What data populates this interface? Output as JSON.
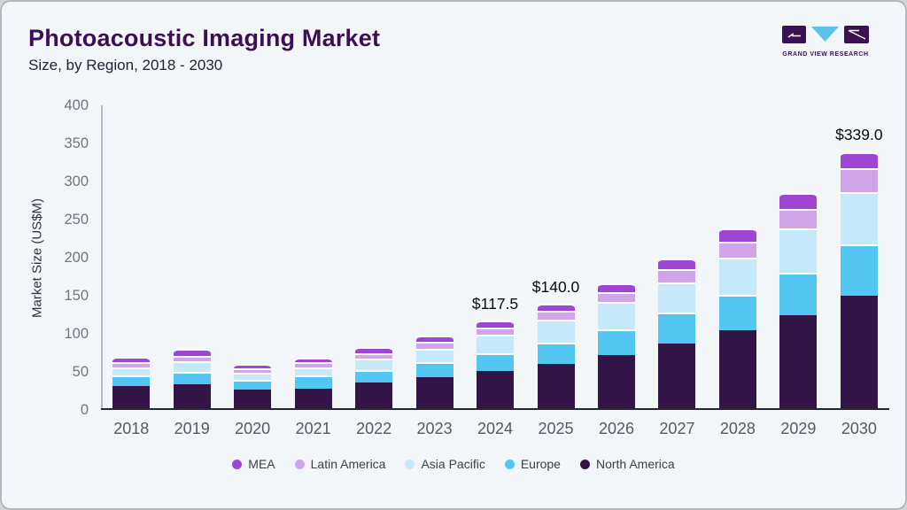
{
  "header": {
    "title": "Photoacoustic Imaging Market",
    "subtitle": "Size, by Region, 2018 - 2030"
  },
  "logo": {
    "brand": "GRAND VIEW RESEARCH",
    "block_color": "#3a1253",
    "triangle_color": "#5bc3ea"
  },
  "chart_data": {
    "type": "bar",
    "stacked": true,
    "title": "Photoacoustic Imaging Market Size, by Region, 2018 - 2030",
    "ylabel": "Market Size (US$M)",
    "xlabel": "",
    "ylim": [
      0,
      400
    ],
    "yticks": [
      0,
      50,
      100,
      150,
      200,
      250,
      300,
      350,
      400
    ],
    "grid": false,
    "legend_position": "bottom",
    "categories": [
      "2018",
      "2019",
      "2020",
      "2021",
      "2022",
      "2023",
      "2024",
      "2025",
      "2026",
      "2027",
      "2028",
      "2029",
      "2030"
    ],
    "series": [
      {
        "name": "North America",
        "color": "#331447",
        "values": [
          31,
          34,
          27,
          28,
          36,
          43,
          51.5,
          61,
          72,
          87,
          105,
          124,
          149.5
        ]
      },
      {
        "name": "Europe",
        "color": "#53C6F1",
        "values": [
          14.5,
          15.5,
          13,
          17,
          16.5,
          19.5,
          23.5,
          27,
          33.5,
          41,
          46.5,
          56,
          67.5
        ]
      },
      {
        "name": "Asia Pacific",
        "color": "#C5E9FA",
        "values": [
          10.5,
          15,
          8.5,
          11,
          14.5,
          18,
          24,
          31,
          36,
          39,
          48.5,
          58.5,
          69.5
        ]
      },
      {
        "name": "Latin America",
        "color": "#CFA4E9",
        "values": [
          6.8,
          7,
          6,
          6.5,
          8,
          9,
          9,
          11,
          13,
          17.5,
          21,
          25.5,
          30.5
        ]
      },
      {
        "name": "MEA",
        "color": "#9E46D3",
        "values": [
          7.2,
          8.5,
          6.5,
          6.5,
          8,
          8.5,
          9.5,
          10,
          11.5,
          14.5,
          17,
          21,
          22
        ]
      }
    ],
    "totals": [
      70,
      80,
      61,
      69,
      83,
      98,
      117.5,
      140,
      166,
      199,
      238,
      285,
      339
    ],
    "annotations": [
      {
        "category": "2024",
        "text": "$117.5"
      },
      {
        "category": "2025",
        "text": "$140.0"
      },
      {
        "category": "2030",
        "text": "$339.0"
      }
    ],
    "legend_order": [
      "MEA",
      "Latin America",
      "Asia Pacific",
      "Europe",
      "North America"
    ]
  }
}
